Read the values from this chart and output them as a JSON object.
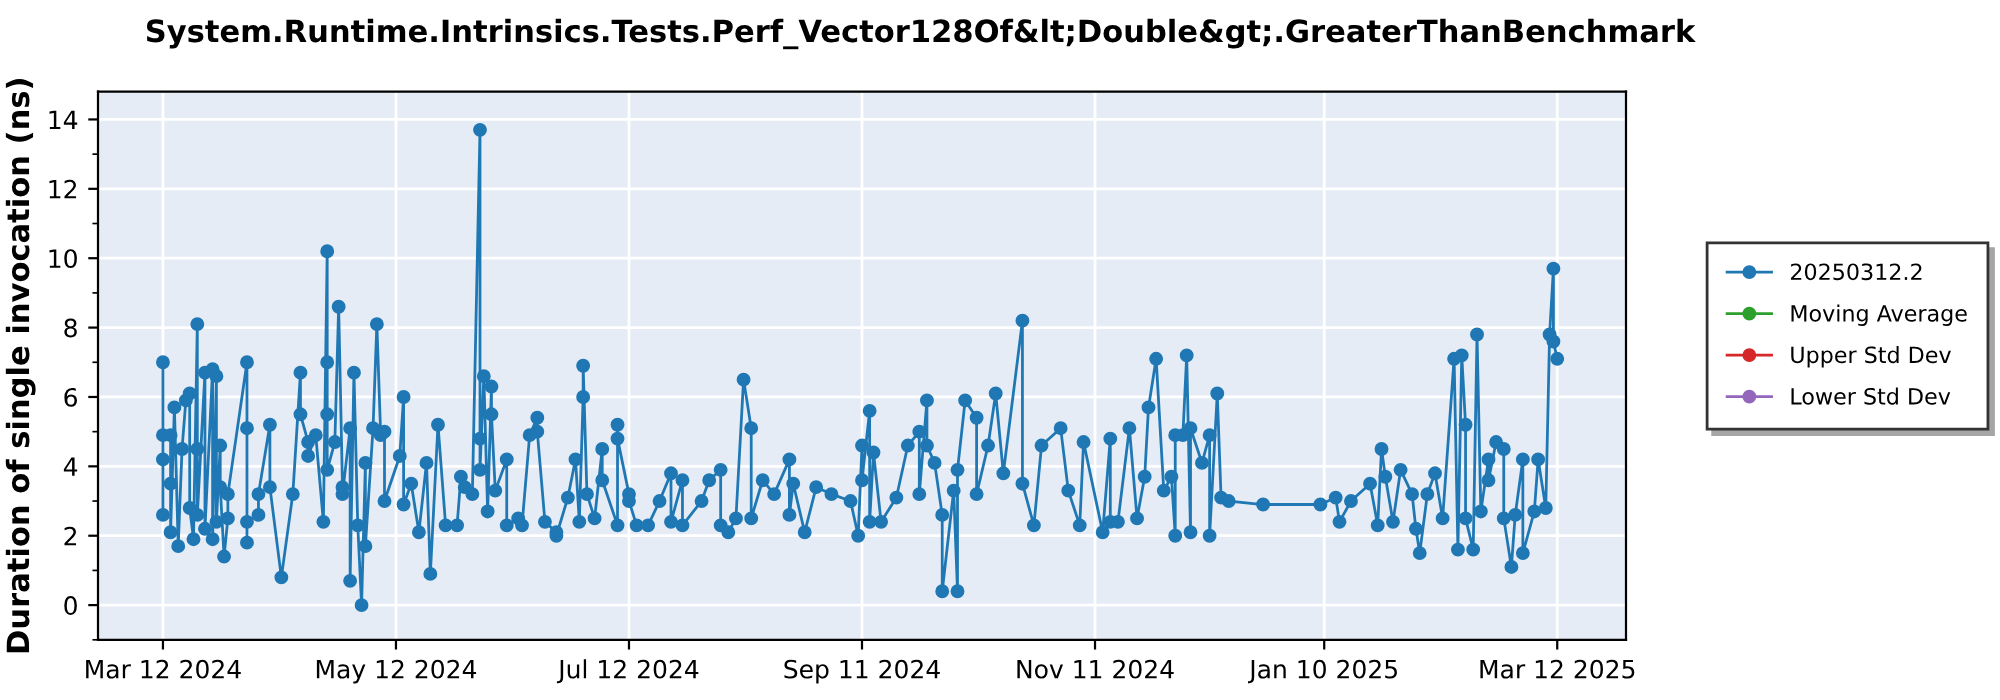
{
  "chart_data": {
    "type": "line",
    "title": "System.Runtime.Intrinsics.Tests.Perf_Vector128Of&lt;Double&gt;.GreaterThanBenchmark",
    "ylabel": "Duration of single invocation (ns)",
    "series": [
      {
        "name": "20250312.2",
        "color": "#1f77b4",
        "x": [
          "2024-03-12",
          "2024-03-12",
          "2024-03-12",
          "2024-03-12",
          "2024-03-14",
          "2024-03-14",
          "2024-03-14",
          "2024-03-15",
          "2024-03-16",
          "2024-03-17",
          "2024-03-18",
          "2024-03-19",
          "2024-03-19",
          "2024-03-20",
          "2024-03-21",
          "2024-03-21",
          "2024-03-21",
          "2024-03-23",
          "2024-03-23",
          "2024-03-25",
          "2024-03-25",
          "2024-03-26",
          "2024-03-26",
          "2024-03-27",
          "2024-03-27",
          "2024-03-28",
          "2024-03-29",
          "2024-03-29",
          "2024-04-03",
          "2024-04-03",
          "2024-04-03",
          "2024-04-03",
          "2024-04-06",
          "2024-04-06",
          "2024-04-09",
          "2024-04-09",
          "2024-04-12",
          "2024-04-15",
          "2024-04-17",
          "2024-04-17",
          "2024-04-19",
          "2024-04-19",
          "2024-04-21",
          "2024-04-23",
          "2024-04-24",
          "2024-04-24",
          "2024-04-24",
          "2024-04-24",
          "2024-04-26",
          "2024-04-27",
          "2024-04-28",
          "2024-04-28",
          "2024-04-30",
          "2024-04-30",
          "2024-05-01",
          "2024-05-02",
          "2024-05-03",
          "2024-05-04",
          "2024-05-04",
          "2024-05-06",
          "2024-05-07",
          "2024-05-08",
          "2024-05-09",
          "2024-05-09",
          "2024-05-13",
          "2024-05-14",
          "2024-05-14",
          "2024-05-16",
          "2024-05-18",
          "2024-05-20",
          "2024-05-21",
          "2024-05-23",
          "2024-05-25",
          "2024-05-28",
          "2024-05-29",
          "2024-05-30",
          "2024-06-01",
          "2024-06-03",
          "2024-06-03",
          "2024-06-03",
          "2024-06-04",
          "2024-06-05",
          "2024-06-06",
          "2024-06-06",
          "2024-06-07",
          "2024-06-10",
          "2024-06-10",
          "2024-06-13",
          "2024-06-14",
          "2024-06-16",
          "2024-06-18",
          "2024-06-18",
          "2024-06-20",
          "2024-06-23",
          "2024-06-23",
          "2024-06-26",
          "2024-06-28",
          "2024-06-29",
          "2024-06-30",
          "2024-06-30",
          "2024-07-01",
          "2024-07-03",
          "2024-07-05",
          "2024-07-05",
          "2024-07-09",
          "2024-07-09",
          "2024-07-09",
          "2024-07-12",
          "2024-07-12",
          "2024-07-14",
          "2024-07-17",
          "2024-07-20",
          "2024-07-23",
          "2024-07-23",
          "2024-07-26",
          "2024-07-26",
          "2024-07-31",
          "2024-08-02",
          "2024-08-05",
          "2024-08-05",
          "2024-08-07",
          "2024-08-09",
          "2024-08-11",
          "2024-08-13",
          "2024-08-13",
          "2024-08-16",
          "2024-08-19",
          "2024-08-23",
          "2024-08-23",
          "2024-08-24",
          "2024-08-27",
          "2024-08-30",
          "2024-09-03",
          "2024-09-08",
          "2024-09-10",
          "2024-09-11",
          "2024-09-11",
          "2024-09-13",
          "2024-09-13",
          "2024-09-14",
          "2024-09-16",
          "2024-09-20",
          "2024-09-23",
          "2024-09-26",
          "2024-09-26",
          "2024-09-28",
          "2024-09-28",
          "2024-09-30",
          "2024-10-02",
          "2024-10-02",
          "2024-10-05",
          "2024-10-06",
          "2024-10-06",
          "2024-10-08",
          "2024-10-11",
          "2024-10-11",
          "2024-10-14",
          "2024-10-16",
          "2024-10-18",
          "2024-10-23",
          "2024-10-23",
          "2024-10-26",
          "2024-10-28",
          "2024-11-02",
          "2024-11-04",
          "2024-11-07",
          "2024-11-08",
          "2024-11-13",
          "2024-11-15",
          "2024-11-15",
          "2024-11-17",
          "2024-11-20",
          "2024-11-22",
          "2024-11-24",
          "2024-11-25",
          "2024-11-27",
          "2024-11-29",
          "2024-12-01",
          "2024-12-02",
          "2024-12-02",
          "2024-12-04",
          "2024-12-05",
          "2024-12-06",
          "2024-12-06",
          "2024-12-09",
          "2024-12-11",
          "2024-12-11",
          "2024-12-13",
          "2024-12-14",
          "2024-12-16",
          "2024-12-25",
          "2025-01-09",
          "2025-01-13",
          "2025-01-14",
          "2025-01-17",
          "2025-01-22",
          "2025-01-24",
          "2025-01-25",
          "2025-01-26",
          "2025-01-28",
          "2025-01-30",
          "2025-02-02",
          "2025-02-03",
          "2025-02-04",
          "2025-02-06",
          "2025-02-08",
          "2025-02-10",
          "2025-02-13",
          "2025-02-14",
          "2025-02-15",
          "2025-02-16",
          "2025-02-16",
          "2025-02-18",
          "2025-02-19",
          "2025-02-20",
          "2025-02-22",
          "2025-02-22",
          "2025-02-24",
          "2025-02-26",
          "2025-02-26",
          "2025-02-28",
          "2025-03-01",
          "2025-03-03",
          "2025-03-03",
          "2025-03-06",
          "2025-03-07",
          "2025-03-09",
          "2025-03-10",
          "2025-03-11",
          "2025-03-11",
          "2025-03-12"
        ],
        "values": [
          2.6,
          7.0,
          4.2,
          4.9,
          4.9,
          3.5,
          2.1,
          5.7,
          1.7,
          4.5,
          5.9,
          6.1,
          2.8,
          1.9,
          8.1,
          4.5,
          2.6,
          6.7,
          2.2,
          6.8,
          1.9,
          6.6,
          2.4,
          4.6,
          3.4,
          1.4,
          2.5,
          3.2,
          7.0,
          1.8,
          5.1,
          2.4,
          2.6,
          3.2,
          5.2,
          3.4,
          0.8,
          3.2,
          6.7,
          5.5,
          4.7,
          4.3,
          4.9,
          2.4,
          10.2,
          7.0,
          5.5,
          3.9,
          4.7,
          8.6,
          3.4,
          3.2,
          5.1,
          0.7,
          6.7,
          2.3,
          0.0,
          4.1,
          1.7,
          5.1,
          8.1,
          4.9,
          5.0,
          3.0,
          4.3,
          6.0,
          2.9,
          3.5,
          2.1,
          4.1,
          0.9,
          5.2,
          2.3,
          2.3,
          3.7,
          3.4,
          3.2,
          13.7,
          4.8,
          3.9,
          6.6,
          2.7,
          6.3,
          5.5,
          3.3,
          4.2,
          2.3,
          2.5,
          2.3,
          4.9,
          5.4,
          5.0,
          2.4,
          2.1,
          2.0,
          3.1,
          4.2,
          2.4,
          6.0,
          6.9,
          3.2,
          2.5,
          4.5,
          3.6,
          2.3,
          5.2,
          4.8,
          3.2,
          3.0,
          2.3,
          2.3,
          3.0,
          3.8,
          2.4,
          3.6,
          2.3,
          3.0,
          3.6,
          3.9,
          2.3,
          2.1,
          2.5,
          6.5,
          5.1,
          2.5,
          3.6,
          3.2,
          4.2,
          2.6,
          3.5,
          2.1,
          3.4,
          3.2,
          3.0,
          2.0,
          4.6,
          3.6,
          5.6,
          2.4,
          4.4,
          2.4,
          3.1,
          4.6,
          5.0,
          3.2,
          5.9,
          4.6,
          4.1,
          2.6,
          0.4,
          3.3,
          0.4,
          3.9,
          5.9,
          5.4,
          3.2,
          4.6,
          6.1,
          3.8,
          8.2,
          3.5,
          2.3,
          4.6,
          5.1,
          3.3,
          2.3,
          4.7,
          2.1,
          4.8,
          2.4,
          2.4,
          5.1,
          2.5,
          3.7,
          5.7,
          7.1,
          3.3,
          3.7,
          2.0,
          4.9,
          4.9,
          7.2,
          2.1,
          5.1,
          4.1,
          4.9,
          2.0,
          6.1,
          3.1,
          3.0,
          2.9,
          2.9,
          3.1,
          2.4,
          3.0,
          3.5,
          2.3,
          4.5,
          3.7,
          2.4,
          3.9,
          3.2,
          2.2,
          1.5,
          3.2,
          3.8,
          2.5,
          7.1,
          1.6,
          7.2,
          5.2,
          2.5,
          1.6,
          7.8,
          2.7,
          4.2,
          3.6,
          4.7,
          4.5,
          2.5,
          1.1,
          2.6,
          4.2,
          1.5,
          2.7,
          4.2,
          2.8,
          7.8,
          9.7,
          7.6,
          7.1
        ]
      },
      {
        "name": "Moving Average",
        "color": "#2ca02c"
      },
      {
        "name": "Upper Std Dev",
        "color": "#d62728"
      },
      {
        "name": "Lower Std Dev",
        "color": "#9467bd"
      }
    ],
    "xlim": [
      "2024-02-24",
      "2025-03-30"
    ],
    "xticks": [
      {
        "value": "2024-03-12",
        "label": "Mar 12 2024"
      },
      {
        "value": "2024-05-12",
        "label": "May 12 2024"
      },
      {
        "value": "2024-07-12",
        "label": "Jul 12 2024"
      },
      {
        "value": "2024-09-11",
        "label": "Sep 11 2024"
      },
      {
        "value": "2024-11-11",
        "label": "Nov 11 2024"
      },
      {
        "value": "2025-01-10",
        "label": "Jan 10 2025"
      },
      {
        "value": "2025-03-12",
        "label": "Mar 12 2025"
      }
    ],
    "ylim": [
      -1,
      14.8
    ],
    "yticks": [
      0,
      2,
      4,
      6,
      8,
      10,
      12,
      14
    ],
    "grid": true,
    "legend": "right",
    "marker": "circle",
    "line_style": "solid"
  }
}
